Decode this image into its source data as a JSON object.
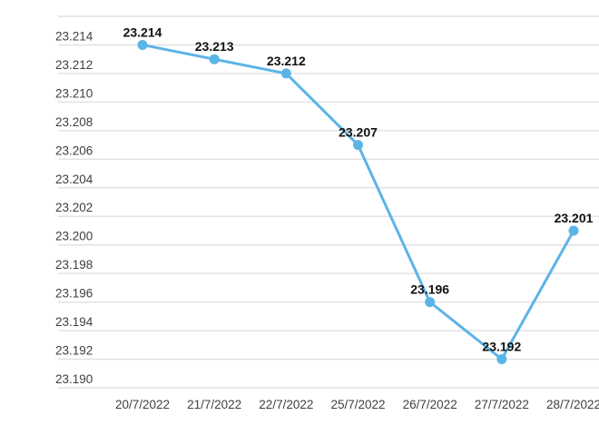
{
  "chart_data": {
    "type": "line",
    "title": "",
    "xlabel": "",
    "ylabel": "",
    "categories": [
      "20/7/2022",
      "21/7/2022",
      "22/7/2022",
      "25/7/2022",
      "26/7/2022",
      "27/7/2022",
      "28/7/2022"
    ],
    "series": [
      {
        "name": "rate",
        "values": [
          23.214,
          23.213,
          23.212,
          23.207,
          23.196,
          23.192,
          23.201
        ],
        "point_labels": [
          "23.214",
          "23.213",
          "23.212",
          "23.207",
          "23.196",
          "23.192",
          "23.201"
        ]
      }
    ],
    "ylim": [
      23.19,
      23.216
    ],
    "y_tick_step": 0.002,
    "y_tick_labels": [
      "23.214",
      "23.212",
      "23.210",
      "23.208",
      "23.206",
      "23.204",
      "23.202",
      "23.200",
      "23.198",
      "23.196",
      "23.194",
      "23.192",
      "23.190"
    ],
    "grid": true,
    "legend_position": "none",
    "colors": {
      "line": "#5bb4e6",
      "point": "#5bb4e6",
      "grid": "#e2e2e2",
      "axis_text": "#3f3f3f",
      "value_text": "#111111",
      "background": "#ffffff"
    }
  }
}
